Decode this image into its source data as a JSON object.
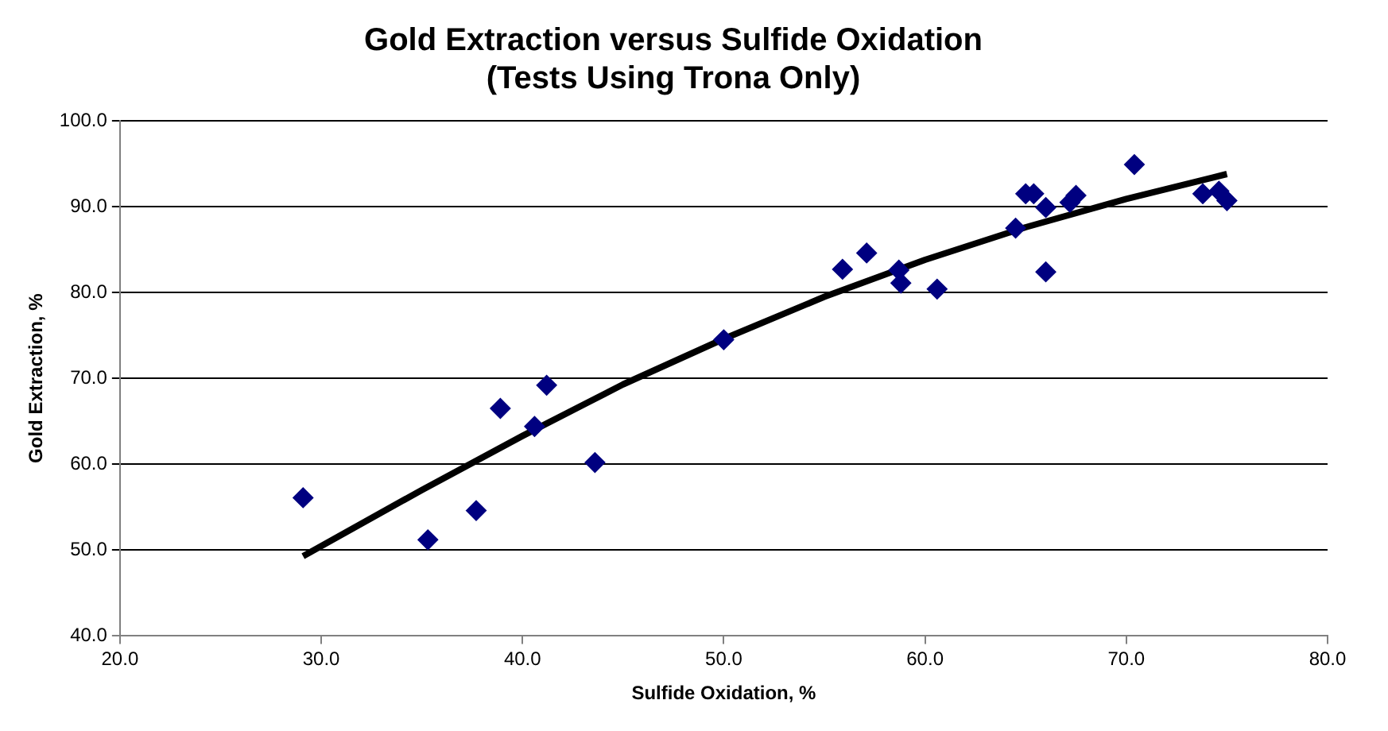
{
  "chart_data": {
    "type": "scatter",
    "title": "Gold Extraction versus Sulfide Oxidation\n(Tests Using Trona Only)",
    "xlabel": "Sulfide Oxidation, %",
    "ylabel": "Gold Extraction, %",
    "xlim": [
      20,
      80
    ],
    "xticks": [
      {
        "value": 20,
        "label": "20.0"
      },
      {
        "value": 30,
        "label": "30.0"
      },
      {
        "value": 40,
        "label": "40.0"
      },
      {
        "value": 50,
        "label": "50.0"
      },
      {
        "value": 60,
        "label": "60.0"
      },
      {
        "value": 70,
        "label": "70.0"
      },
      {
        "value": 80,
        "label": "80.0"
      }
    ],
    "ylim": [
      40,
      100
    ],
    "yticks": [
      {
        "value": 40,
        "label": "40.0"
      },
      {
        "value": 50,
        "label": "50.0"
      },
      {
        "value": 60,
        "label": "60.0"
      },
      {
        "value": 70,
        "label": "70.0"
      },
      {
        "value": 80,
        "label": "80.0"
      },
      {
        "value": 90,
        "label": "90.0"
      },
      {
        "value": 100,
        "label": "100.0"
      }
    ],
    "grid": "y",
    "legend": false,
    "marker": "diamond",
    "series": [
      {
        "type": "scatter",
        "color": "#000080",
        "x": [
          29.1,
          35.3,
          37.7,
          38.9,
          40.6,
          41.2,
          43.6,
          50.0,
          55.9,
          57.1,
          58.7,
          58.8,
          60.6,
          64.5,
          65.0,
          65.4,
          66.0,
          66.0,
          67.2,
          67.5,
          70.4,
          73.8,
          74.6,
          75.0
        ],
        "values": [
          56.1,
          51.2,
          54.6,
          66.5,
          64.4,
          69.2,
          60.2,
          74.5,
          82.7,
          84.6,
          82.6,
          81.1,
          80.4,
          87.5,
          91.5,
          91.5,
          89.9,
          82.4,
          90.5,
          91.3,
          94.9,
          91.5,
          91.8,
          90.7
        ]
      },
      {
        "type": "line",
        "color": "#000000",
        "marker": "none",
        "x": [
          29.1,
          35,
          40,
          45,
          50,
          55,
          60,
          65,
          70,
          75
        ],
        "values": [
          49.3,
          57.0,
          63.3,
          69.3,
          74.6,
          79.5,
          83.8,
          87.6,
          90.9,
          93.8
        ]
      }
    ]
  }
}
